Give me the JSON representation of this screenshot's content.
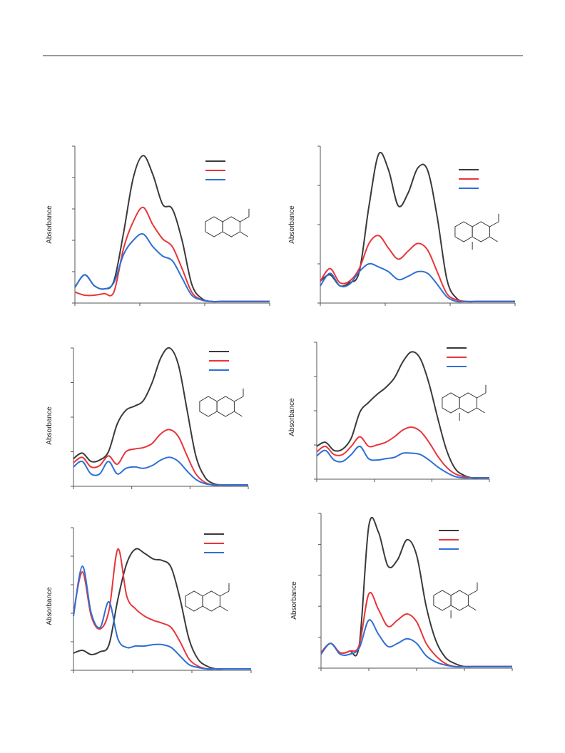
{
  "chart_data": [
    {
      "type": "line",
      "y_label": "Absorbance",
      "x": [
        0,
        0.05,
        0.1,
        0.15,
        0.2,
        0.25,
        0.3,
        0.35,
        0.4,
        0.45,
        0.5,
        0.55,
        0.6,
        0.65,
        0.7,
        0.75,
        0.8,
        0.85,
        0.9,
        0.95,
        1
      ],
      "xlim": [
        0,
        1
      ],
      "ylim": [
        0,
        1
      ],
      "series": [
        {
          "color": "#3a3a3a",
          "values": [
            0.1,
            0.18,
            0.11,
            0.09,
            0.14,
            0.45,
            0.8,
            0.94,
            0.82,
            0.63,
            0.6,
            0.4,
            0.12,
            0.03,
            0.01,
            0.01,
            0.01,
            0.01,
            0.01,
            0.01,
            0.01
          ]
        },
        {
          "color": "#e8363a",
          "values": [
            0.07,
            0.05,
            0.05,
            0.06,
            0.07,
            0.35,
            0.52,
            0.61,
            0.5,
            0.41,
            0.36,
            0.22,
            0.07,
            0.02,
            0.01,
            0.01,
            0.01,
            0.01,
            0.01,
            0.01,
            0.01
          ]
        },
        {
          "color": "#2f6fd6",
          "values": [
            0.1,
            0.18,
            0.11,
            0.09,
            0.13,
            0.31,
            0.4,
            0.44,
            0.36,
            0.3,
            0.27,
            0.16,
            0.05,
            0.02,
            0.01,
            0.01,
            0.01,
            0.01,
            0.01,
            0.01,
            0.01
          ]
        }
      ]
    },
    {
      "type": "line",
      "y_label": "Absorbance",
      "x": [
        0,
        0.05,
        0.1,
        0.15,
        0.2,
        0.25,
        0.3,
        0.35,
        0.4,
        0.45,
        0.5,
        0.55,
        0.6,
        0.65,
        0.7,
        0.75,
        0.8,
        0.85,
        0.9,
        0.95,
        1
      ],
      "xlim": [
        0,
        1
      ],
      "ylim": [
        0,
        1
      ],
      "series": [
        {
          "color": "#3a3a3a",
          "values": [
            0.14,
            0.18,
            0.11,
            0.13,
            0.2,
            0.62,
            0.95,
            0.85,
            0.62,
            0.7,
            0.86,
            0.85,
            0.55,
            0.15,
            0.03,
            0.01,
            0.01,
            0.01,
            0.01,
            0.01,
            0.01
          ]
        },
        {
          "color": "#e8363a",
          "values": [
            0.14,
            0.22,
            0.13,
            0.14,
            0.22,
            0.38,
            0.43,
            0.35,
            0.28,
            0.33,
            0.38,
            0.34,
            0.2,
            0.06,
            0.02,
            0.01,
            0.01,
            0.01,
            0.01,
            0.01,
            0.01
          ]
        },
        {
          "color": "#2f6fd6",
          "values": [
            0.11,
            0.19,
            0.11,
            0.12,
            0.2,
            0.25,
            0.23,
            0.2,
            0.15,
            0.17,
            0.2,
            0.19,
            0.12,
            0.04,
            0.01,
            0.01,
            0.01,
            0.01,
            0.01,
            0.01,
            0.01
          ]
        }
      ]
    },
    {
      "type": "line",
      "y_label": "Absorbance",
      "x": [
        0,
        0.05,
        0.1,
        0.15,
        0.2,
        0.25,
        0.3,
        0.35,
        0.4,
        0.45,
        0.5,
        0.55,
        0.6,
        0.65,
        0.7,
        0.75,
        0.8,
        0.85,
        0.9,
        0.95,
        1
      ],
      "xlim": [
        0,
        1
      ],
      "ylim": [
        0,
        1
      ],
      "series": [
        {
          "color": "#3a3a3a",
          "values": [
            0.2,
            0.24,
            0.18,
            0.19,
            0.25,
            0.45,
            0.55,
            0.58,
            0.62,
            0.75,
            0.93,
            1.0,
            0.88,
            0.55,
            0.22,
            0.07,
            0.02,
            0.01,
            0.01,
            0.01,
            0.01
          ]
        },
        {
          "color": "#e8363a",
          "values": [
            0.17,
            0.21,
            0.14,
            0.15,
            0.22,
            0.16,
            0.25,
            0.27,
            0.28,
            0.31,
            0.38,
            0.41,
            0.36,
            0.22,
            0.09,
            0.03,
            0.01,
            0.01,
            0.01,
            0.01,
            0.01
          ]
        },
        {
          "color": "#2f6fd6",
          "values": [
            0.14,
            0.18,
            0.09,
            0.09,
            0.18,
            0.09,
            0.13,
            0.14,
            0.13,
            0.15,
            0.19,
            0.21,
            0.18,
            0.11,
            0.05,
            0.02,
            0.01,
            0.01,
            0.01,
            0.01,
            0.01
          ]
        }
      ]
    },
    {
      "type": "line",
      "y_label": "Absorbance",
      "x": [
        0,
        0.05,
        0.1,
        0.15,
        0.2,
        0.25,
        0.3,
        0.35,
        0.4,
        0.45,
        0.5,
        0.55,
        0.6,
        0.65,
        0.7,
        0.75,
        0.8,
        0.85,
        0.9,
        0.95,
        1
      ],
      "xlim": [
        0,
        1
      ],
      "ylim": [
        0,
        1
      ],
      "series": [
        {
          "color": "#3a3a3a",
          "values": [
            0.24,
            0.27,
            0.21,
            0.22,
            0.3,
            0.49,
            0.56,
            0.62,
            0.67,
            0.74,
            0.86,
            0.93,
            0.88,
            0.7,
            0.45,
            0.22,
            0.08,
            0.03,
            0.01,
            0.01,
            0.01
          ]
        },
        {
          "color": "#e8363a",
          "values": [
            0.2,
            0.24,
            0.18,
            0.18,
            0.24,
            0.31,
            0.24,
            0.25,
            0.27,
            0.31,
            0.36,
            0.38,
            0.35,
            0.27,
            0.17,
            0.09,
            0.04,
            0.02,
            0.01,
            0.01,
            0.01
          ]
        },
        {
          "color": "#2f6fd6",
          "values": [
            0.17,
            0.21,
            0.14,
            0.13,
            0.18,
            0.24,
            0.15,
            0.14,
            0.15,
            0.16,
            0.19,
            0.19,
            0.18,
            0.14,
            0.09,
            0.05,
            0.02,
            0.01,
            0.01,
            0.01,
            0.01
          ]
        }
      ]
    },
    {
      "type": "line",
      "y_label": "Absorbance",
      "x": [
        0,
        0.05,
        0.1,
        0.15,
        0.2,
        0.25,
        0.3,
        0.35,
        0.4,
        0.45,
        0.5,
        0.55,
        0.6,
        0.65,
        0.7,
        0.75,
        0.8,
        0.85,
        0.9,
        0.95,
        1
      ],
      "xlim": [
        0,
        1
      ],
      "ylim": [
        0,
        1
      ],
      "series": [
        {
          "color": "#3a3a3a",
          "values": [
            0.12,
            0.14,
            0.11,
            0.13,
            0.18,
            0.5,
            0.75,
            0.85,
            0.82,
            0.78,
            0.77,
            0.72,
            0.5,
            0.22,
            0.08,
            0.03,
            0.01,
            0.01,
            0.01,
            0.01,
            0.01
          ]
        },
        {
          "color": "#e8363a",
          "values": [
            0.4,
            0.69,
            0.38,
            0.29,
            0.42,
            0.85,
            0.52,
            0.43,
            0.38,
            0.35,
            0.33,
            0.3,
            0.2,
            0.08,
            0.03,
            0.01,
            0.01,
            0.01,
            0.01,
            0.01,
            0.01
          ]
        },
        {
          "color": "#2f6fd6",
          "values": [
            0.38,
            0.73,
            0.4,
            0.3,
            0.48,
            0.22,
            0.16,
            0.17,
            0.17,
            0.18,
            0.18,
            0.16,
            0.1,
            0.04,
            0.02,
            0.01,
            0.01,
            0.01,
            0.01,
            0.01,
            0.01
          ]
        }
      ]
    },
    {
      "type": "line",
      "y_label": "Absorbance",
      "x": [
        0,
        0.05,
        0.1,
        0.15,
        0.2,
        0.25,
        0.3,
        0.35,
        0.4,
        0.45,
        0.5,
        0.55,
        0.6,
        0.65,
        0.7,
        0.75,
        0.8,
        0.85,
        0.9,
        0.95,
        1
      ],
      "xlim": [
        0,
        1
      ],
      "ylim": [
        0,
        1
      ],
      "series": [
        {
          "color": "#3a3a3a",
          "values": [
            0.1,
            0.16,
            0.1,
            0.11,
            0.15,
            0.92,
            0.88,
            0.66,
            0.7,
            0.83,
            0.73,
            0.4,
            0.18,
            0.07,
            0.03,
            0.01,
            0.01,
            0.01,
            0.01,
            0.01,
            0.01
          ]
        },
        {
          "color": "#e8363a",
          "values": [
            0.1,
            0.16,
            0.1,
            0.11,
            0.15,
            0.48,
            0.38,
            0.27,
            0.31,
            0.35,
            0.3,
            0.16,
            0.08,
            0.03,
            0.01,
            0.01,
            0.01,
            0.01,
            0.01,
            0.01,
            0.01
          ]
        },
        {
          "color": "#2f6fd6",
          "values": [
            0.09,
            0.16,
            0.09,
            0.09,
            0.13,
            0.31,
            0.22,
            0.14,
            0.16,
            0.19,
            0.16,
            0.08,
            0.04,
            0.02,
            0.01,
            0.01,
            0.01,
            0.01,
            0.01,
            0.01,
            0.01
          ]
        }
      ]
    }
  ]
}
